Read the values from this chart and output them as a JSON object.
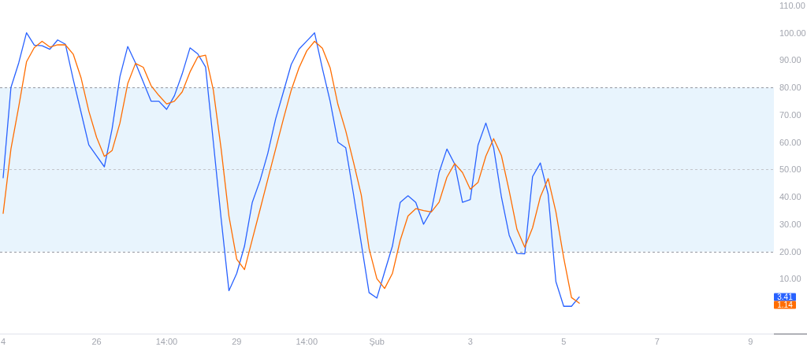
{
  "chart_data": {
    "type": "line",
    "categories": [
      "4",
      null,
      null,
      null,
      null,
      null,
      null,
      null,
      null,
      null,
      null,
      null,
      "26",
      null,
      null,
      null,
      null,
      null,
      null,
      null,
      null,
      "14:00",
      null,
      null,
      null,
      null,
      null,
      null,
      null,
      null,
      "29",
      null,
      null,
      null,
      null,
      null,
      null,
      null,
      null,
      "14:00",
      null,
      null,
      null,
      null,
      null,
      null,
      null,
      null,
      "Şub",
      null,
      null,
      null,
      null,
      null,
      null,
      null,
      null,
      null,
      null,
      null,
      "3",
      null,
      null,
      null,
      null,
      null,
      null,
      null,
      null,
      null,
      null,
      null,
      "5",
      null,
      null,
      null,
      null,
      null,
      null,
      null,
      null,
      null,
      null,
      null,
      "7",
      null,
      null,
      null,
      null,
      null,
      null,
      null,
      null,
      null,
      null,
      null,
      "9",
      null,
      null,
      null
    ],
    "ylim": [
      -10,
      112
    ],
    "yticks": [
      {
        "value": 10,
        "label": "10.00"
      },
      {
        "value": 20,
        "label": "20.00"
      },
      {
        "value": 30,
        "label": "30.00"
      },
      {
        "value": 40,
        "label": "40.00"
      },
      {
        "value": 50,
        "label": "50.00"
      },
      {
        "value": 60,
        "label": "60.00"
      },
      {
        "value": 70,
        "label": "70.00"
      },
      {
        "value": 80,
        "label": "80.00"
      },
      {
        "value": 90,
        "label": "90.00"
      },
      {
        "value": 100,
        "label": "100.00"
      },
      {
        "value": 110,
        "label": "110.00"
      }
    ],
    "series": [
      {
        "color": "#2962ff",
        "values": [
          47,
          80,
          89,
          100,
          95.5,
          95.3,
          94,
          97.4,
          95.8,
          83,
          71,
          59,
          55,
          51,
          65,
          84,
          95,
          89,
          82,
          75,
          75,
          72,
          77,
          85,
          94.5,
          92.3,
          87.5,
          60,
          32,
          5.7,
          12,
          22,
          38,
          46,
          56,
          68.5,
          78.4,
          88.4,
          94,
          97,
          100,
          87,
          75,
          60,
          58,
          41,
          23,
          5,
          3,
          12.6,
          22,
          38,
          40.4,
          38,
          30,
          35,
          49,
          57.5,
          52,
          38,
          39,
          59,
          67,
          58,
          40,
          26,
          19.3,
          19.2,
          47.4,
          52.4,
          41,
          9,
          0,
          0,
          3.41,
          null,
          null,
          null,
          null,
          null,
          null,
          null,
          null,
          null,
          null,
          null,
          null,
          null,
          null,
          null,
          null,
          null,
          null,
          null,
          null,
          null,
          null,
          null,
          null,
          null
        ]
      },
      {
        "color": "#ff6d00",
        "values": [
          34,
          57.5,
          73,
          89.4,
          94.6,
          96.9,
          94.8,
          95.6,
          95.6,
          92.2,
          83.6,
          71.4,
          61.8,
          54.8,
          57,
          67,
          81.4,
          88.8,
          87.4,
          80.7,
          77.1,
          74,
          75,
          78.4,
          85.7,
          91.2,
          91.8,
          79,
          57.5,
          33,
          17.2,
          13.4,
          24.4,
          35.4,
          46.5,
          57.5,
          68.5,
          79,
          87.2,
          93.4,
          96.9,
          94.4,
          87.2,
          73.8,
          64.2,
          52.7,
          40.7,
          21.1,
          10.1,
          6.5,
          12,
          24.1,
          33,
          35.7,
          35,
          34.5,
          38.1,
          47.2,
          52.2,
          48.9,
          42.8,
          45.3,
          54.9,
          61.3,
          55.1,
          42.2,
          28.1,
          21.6,
          28.7,
          40,
          46.7,
          34.5,
          17.7,
          3.2,
          1.14,
          null,
          null,
          null,
          null,
          null,
          null,
          null,
          null,
          null,
          null,
          null,
          null,
          null,
          null,
          null,
          null,
          null,
          null,
          null,
          null,
          null,
          null,
          null,
          null,
          null
        ]
      }
    ],
    "annotations": [
      {
        "text": "3.41",
        "y": 3.41
      },
      {
        "text": "1.14",
        "y": 1.14
      }
    ],
    "bands": [
      {
        "axis": "y",
        "from": 20,
        "to": 80,
        "color": "#e8f4fd"
      }
    ],
    "ref_lines": [
      {
        "axis": "y",
        "value": 80,
        "color": "#9598a1",
        "line_style": "dashed"
      },
      {
        "axis": "y",
        "value": 50,
        "color": "#c3c5ca",
        "line_style": "dashed"
      },
      {
        "axis": "y",
        "value": 20,
        "color": "#9598a1",
        "line_style": "dashed"
      }
    ]
  }
}
